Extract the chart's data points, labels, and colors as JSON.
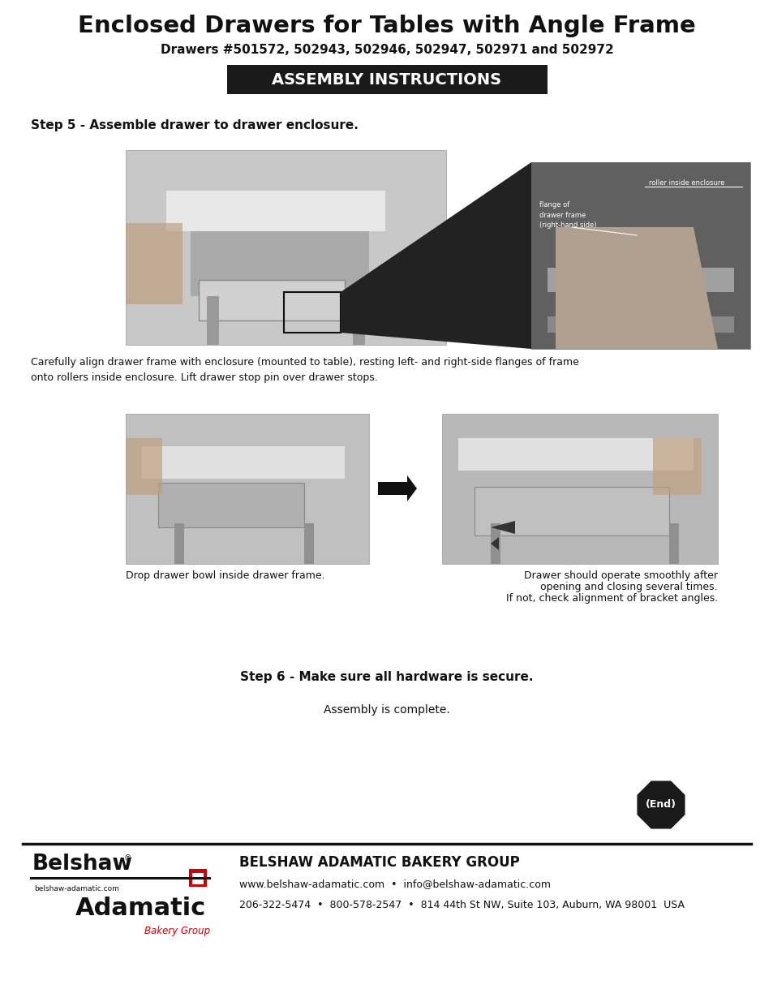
{
  "title": "Enclosed Drawers for Tables with Angle Frame",
  "subtitle": "Drawers #501572, 502943, 502946, 502947, 502971 and 502972",
  "assembly_banner": "ASSEMBLY INSTRUCTIONS",
  "step5_title": "Step 5 - Assemble drawer to drawer enclosure.",
  "step5_caption": "Carefully align drawer frame with enclosure (mounted to table), resting left- and right-side flanges of frame\nonto rollers inside enclosure. Lift drawer stop pin over drawer stops.",
  "step5_label1": "flange of\ndrawer frame\n(right-hand side)",
  "step5_label2": "roller inside enclosure",
  "caption_left": "Drop drawer bowl inside drawer frame.",
  "caption_right_line1": "Drawer should operate smoothly after",
  "caption_right_line2": "opening and closing several times.",
  "caption_right_line3": "If not, check alignment of bracket angles.",
  "step6_title": "Step 6 - Make sure all hardware is secure.",
  "step6_caption": "Assembly is complete.",
  "end_label": "(End)",
  "footer_company": "BELSHAW ADAMATIC BAKERY GROUP",
  "footer_web": "www.belshaw-adamatic.com  •  info@belshaw-adamatic.com",
  "footer_phone": "206-322-5474  •  800-578-2547  •  814 44th St NW, Suite 103, Auburn, WA 98001  USA",
  "belshaw_text": "Belshaw",
  "adamatic_text": "Adamatic",
  "bakery_group_text": "Bakery Group",
  "website_small": "belshaw-adamatic.com",
  "bg_color": "#ffffff",
  "banner_bg": "#1a1a1a",
  "banner_text_color": "#ffffff",
  "text_color": "#111111",
  "footer_line_color": "#111111",
  "red_color": "#cc0000",
  "end_bg": "#1a1a1a",
  "photo_gray1": "#c8c8c8",
  "photo_gray2": "#b0b0b0",
  "photo_gray3": "#c0c0c0",
  "photo_gray4": "#b8b8b8"
}
